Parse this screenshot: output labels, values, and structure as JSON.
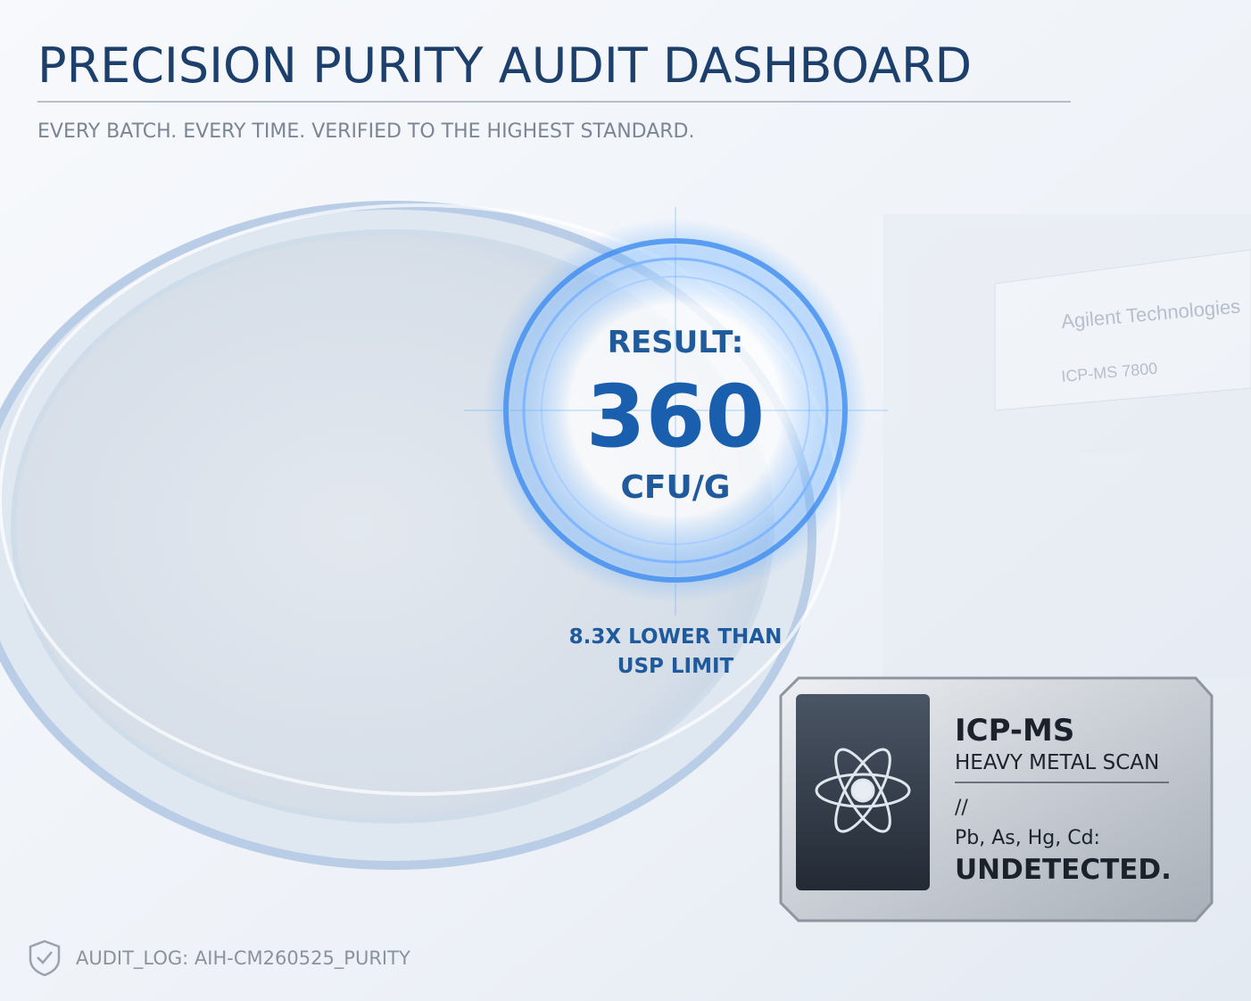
{
  "header": {
    "title": "PRECISION PURITY AUDIT DASHBOARD",
    "subtitle": "EVERY BATCH. EVERY TIME. VERIFIED TO THE HIGHEST STANDARD."
  },
  "instrument": {
    "brand": "Agilent Technologies",
    "model": "ICP-MS  7800"
  },
  "result": {
    "label": "RESULT:",
    "value": 360,
    "unit": "CFU/G",
    "note": [
      "8.3X LOWER THAN",
      "USP LIMIT"
    ]
  },
  "badge": {
    "title": "ICP-MS",
    "subtitle": "HEAVY METAL SCAN",
    "separator": "//",
    "elements": "Pb, As, Hg, Cd:",
    "status": "UNDETECTED."
  },
  "footer": {
    "audit_log": "AUDIT_LOG: AIH-CM260525_PURITY"
  }
}
